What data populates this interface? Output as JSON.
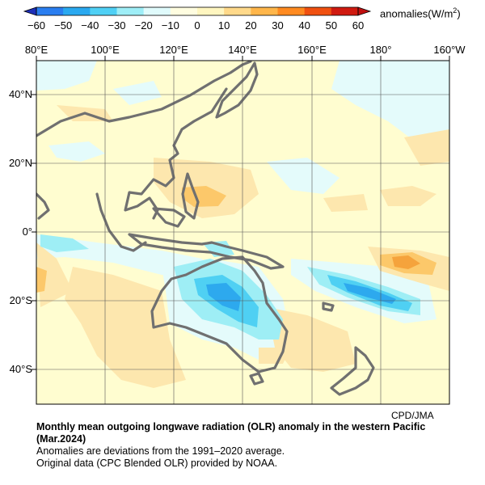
{
  "colorbar": {
    "ticks": [
      "−60",
      "−50",
      "−40",
      "−30",
      "−20",
      "−10",
      "0",
      "10",
      "20",
      "30",
      "40",
      "50",
      "60"
    ],
    "units": "anomalies(W/m",
    "units_sup": "2",
    "units_close": ")",
    "colors": [
      "#2b3fd6",
      "#2a7ef0",
      "#2aa9f0",
      "#4fd0f5",
      "#9eeef7",
      "#e0fbfc",
      "#fffde0",
      "#fff6c0",
      "#ffd98a",
      "#ffb64a",
      "#ff8a20",
      "#f05010",
      "#d01a10"
    ]
  },
  "map": {
    "lon_labels": [
      "80°E",
      "100°E",
      "120°E",
      "140°E",
      "160°E",
      "180°",
      "160°W"
    ],
    "lat_labels": [
      "40°N",
      "20°N",
      "0°",
      "20°S",
      "40°S"
    ]
  },
  "credit": "CPD/JMA",
  "caption": {
    "title": "Monthly mean outgoing longwave radiation (OLR) anomaly in the western Pacific (Mar.2024)",
    "line2": "Anomalies are deviations from the 1991–2020 average.",
    "line3": "Original data (CPC Blended OLR) provided by NOAA."
  }
}
